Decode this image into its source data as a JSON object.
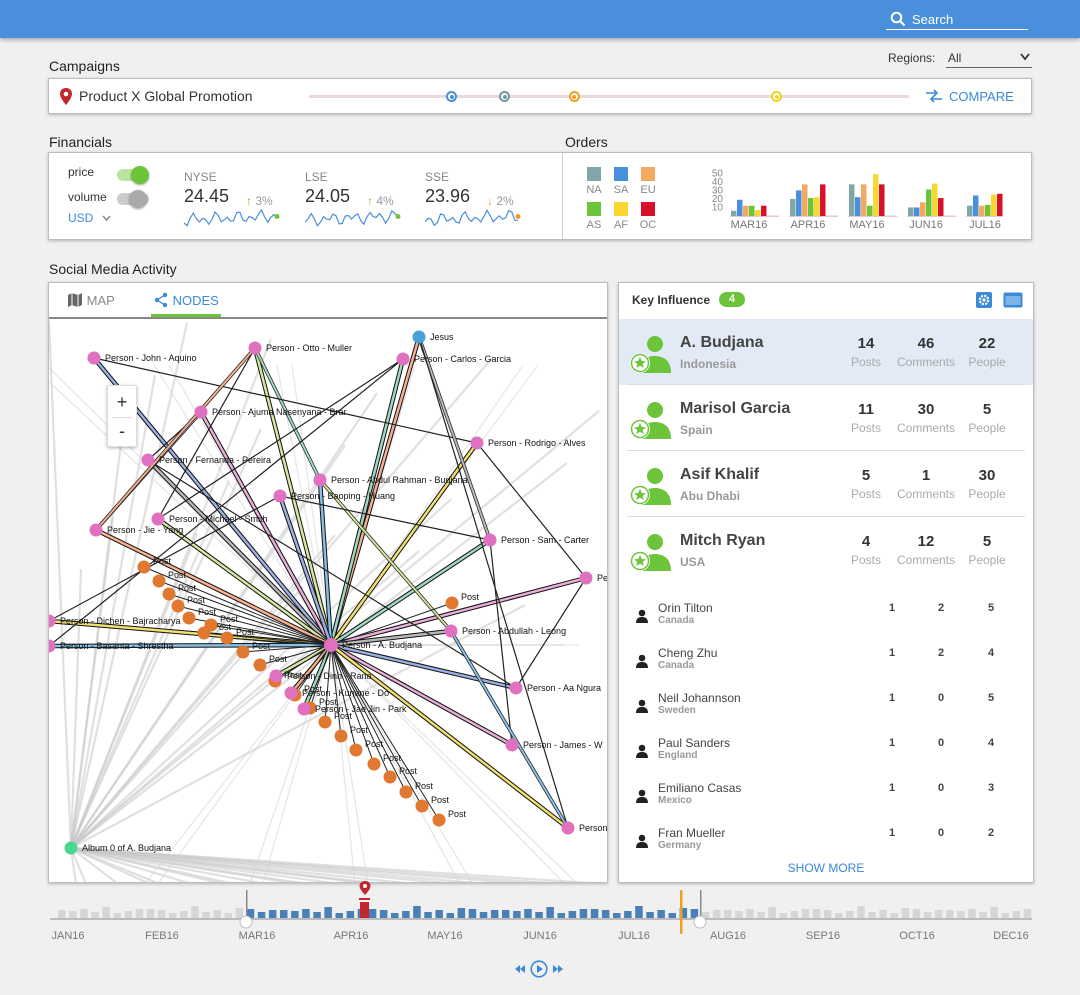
{
  "header": {
    "search_placeholder": "Search",
    "search_icon": "search-icon"
  },
  "campaigns": {
    "title": "Campaigns",
    "regions_label": "Regions:",
    "regions_value": "All",
    "campaign_name": "Product X Global Promotion",
    "compare_label": "COMPARE",
    "markers": [
      {
        "position": 0.237,
        "color": "#4a8fdb"
      },
      {
        "position": 0.325,
        "color": "#6f9aa0"
      },
      {
        "position": 0.441,
        "color": "#f0a020"
      },
      {
        "position": 0.779,
        "color": "#f0d020"
      }
    ]
  },
  "financials": {
    "title": "Financials",
    "toggles": [
      {
        "label": "price",
        "on": true
      },
      {
        "label": "volume",
        "on": false
      }
    ],
    "currency": "USD",
    "tickers": [
      {
        "name": "NYSE",
        "value": "24.45",
        "arrow": "↑",
        "change": "3%",
        "color": "#6bc43a"
      },
      {
        "name": "LSE",
        "value": "24.05",
        "arrow": "↑",
        "change": "4%",
        "color": "#6bc43a"
      },
      {
        "name": "SSE",
        "value": "23.96",
        "arrow": "↓",
        "change": "2%",
        "color": "#f0a020"
      }
    ]
  },
  "orders": {
    "title": "Orders",
    "legend": [
      {
        "label": "NA",
        "color": "#7fa6a8"
      },
      {
        "label": "SA",
        "color": "#4a8fdb"
      },
      {
        "label": "EU",
        "color": "#f4a860"
      },
      {
        "label": "AS",
        "color": "#6bc43a"
      },
      {
        "label": "AF",
        "color": "#f8d830"
      },
      {
        "label": "OC",
        "color": "#d8102a"
      }
    ],
    "chart_data": {
      "type": "bar",
      "categories": [
        "MAR16",
        "APR16",
        "MAY16",
        "JUN16",
        "JUL16"
      ],
      "yticks": [
        "50",
        "40",
        "30",
        "20",
        "10"
      ],
      "ylim": [
        0,
        55
      ],
      "series": [
        {
          "name": "NA",
          "values": [
            6,
            20,
            37,
            10,
            12
          ]
        },
        {
          "name": "SA",
          "values": [
            19,
            30,
            22,
            10,
            24
          ]
        },
        {
          "name": "EU",
          "values": [
            12,
            37,
            37,
            16,
            12
          ]
        },
        {
          "name": "AS",
          "values": [
            12,
            21,
            12,
            31,
            13
          ]
        },
        {
          "name": "AF",
          "values": [
            7,
            22,
            49,
            38,
            25
          ]
        },
        {
          "name": "OC",
          "values": [
            12,
            37,
            37,
            21,
            26
          ]
        }
      ]
    }
  },
  "social": {
    "title": "Social Media Activity",
    "tabs": [
      {
        "label": "MAP",
        "active": false
      },
      {
        "label": "NODES",
        "active": true
      }
    ],
    "zoom_in": "+",
    "zoom_out": "-"
  },
  "key_influence": {
    "title": "Key Influence",
    "count": "4",
    "stat_labels": [
      "Posts",
      "Comments",
      "People"
    ],
    "top": [
      {
        "name": "A. Budjana",
        "location": "Indonesia",
        "posts": "14",
        "comments": "46",
        "people": "22",
        "selected": true
      },
      {
        "name": "Marisol Garcia",
        "location": "Spain",
        "posts": "11",
        "comments": "30",
        "people": "5",
        "selected": false
      },
      {
        "name": "Asif Khalif",
        "location": "Abu Dhabi",
        "posts": "5",
        "comments": "1",
        "people": "30",
        "selected": false
      },
      {
        "name": "Mitch Ryan",
        "location": "USA",
        "posts": "4",
        "comments": "12",
        "people": "5",
        "selected": false
      }
    ],
    "others": [
      {
        "name": "Orin Tilton",
        "location": "Canada",
        "a": "1",
        "b": "2",
        "c": "5"
      },
      {
        "name": "Cheng Zhu",
        "location": "Canada",
        "a": "1",
        "b": "2",
        "c": "4"
      },
      {
        "name": "Neil Johannson",
        "location": "Sweden",
        "a": "1",
        "b": "0",
        "c": "5"
      },
      {
        "name": "Paul Sanders",
        "location": "England",
        "a": "1",
        "b": "0",
        "c": "4"
      },
      {
        "name": "Emiliano Casas",
        "location": "Mexico",
        "a": "1",
        "b": "0",
        "c": "3"
      },
      {
        "name": "Fran Mueller",
        "location": "Germany",
        "a": "1",
        "b": "0",
        "c": "2"
      }
    ],
    "show_more": "SHOW MORE"
  },
  "network": {
    "hub": {
      "label": "Person - A. Budjana"
    },
    "persons": [
      {
        "label": "Person - John - Aquino"
      },
      {
        "label": "Person - Otto - Muller"
      },
      {
        "label": "Jesus",
        "color": "#4aa0d8"
      },
      {
        "label": "Person - Carlos - Garcia"
      },
      {
        "label": "Person - Ajuma Nasenyana - Brar"
      },
      {
        "label": "Person - Rodrigo - Alves"
      },
      {
        "label": "Person - Fernanda - Pereira"
      },
      {
        "label": "Person - Abdul Rahman - Budjana"
      },
      {
        "label": "Person - Baoping - Huang"
      },
      {
        "label": "Person - Michael - Smith"
      },
      {
        "label": "Person - Jie - Yang"
      },
      {
        "label": "Person - Sam - Carter"
      },
      {
        "label": "Pe"
      },
      {
        "label": "Person - Dichen - Bajracharya"
      },
      {
        "label": "Person - Abdullah - Leong"
      },
      {
        "label": "Person - Basanta - Shrestha"
      },
      {
        "label": "Person - Aa Ngura"
      },
      {
        "label": "Person - Dinh - Rana"
      },
      {
        "label": "Person - Kunene - Do"
      },
      {
        "label": "Person - Jae Jin - Park"
      },
      {
        "label": "Person - James - W"
      },
      {
        "label": "Person"
      },
      {
        "label": "Album 0 of A. Budjana",
        "color": "#4ad890"
      }
    ],
    "post_label": "Post"
  },
  "timeline": {
    "months": [
      "JAN16",
      "FEB16",
      "MAR16",
      "APR16",
      "MAY16",
      "JUN16",
      "JUL16",
      "AUG16",
      "SEP16",
      "OCT16",
      "DEC16"
    ],
    "controls": {
      "rewind_icon": "rewind-icon",
      "play_icon": "play-icon",
      "forward_icon": "fast-forward-icon"
    }
  }
}
